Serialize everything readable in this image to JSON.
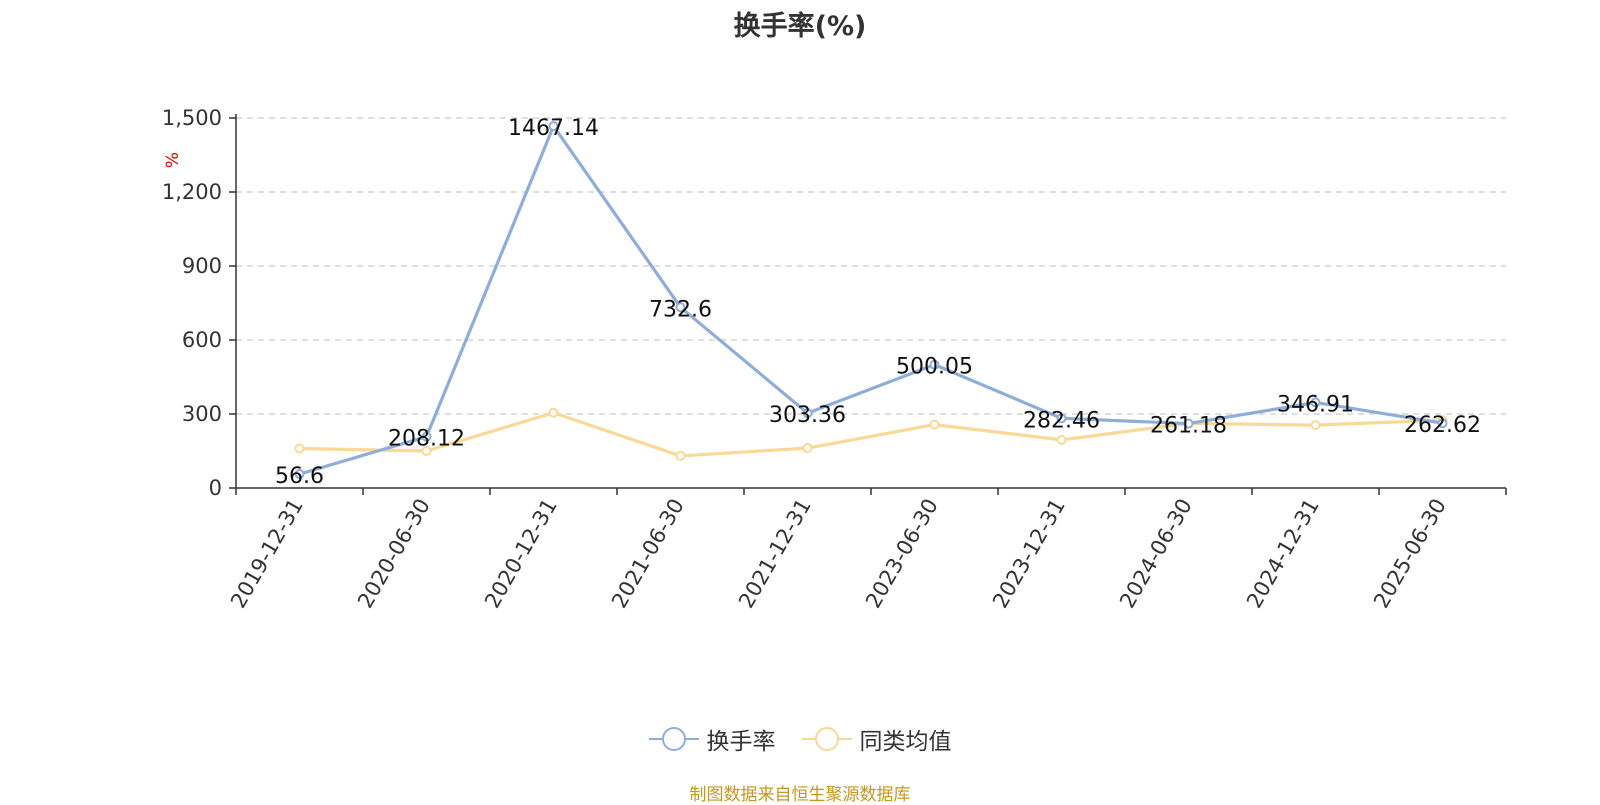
{
  "chart_data": {
    "type": "line",
    "title": "换手率(%)",
    "unit": "%",
    "categories": [
      "2019-12-31",
      "2020-06-30",
      "2020-12-31",
      "2021-06-30",
      "2021-12-31",
      "2023-06-30",
      "2023-12-31",
      "2024-06-30",
      "2024-12-31",
      "2025-06-30"
    ],
    "ylim": [
      0,
      1500
    ],
    "yticks": [
      0,
      300,
      600,
      900,
      1200,
      1500
    ],
    "ytick_labels": [
      "0",
      "300",
      "600",
      "900",
      "1,200",
      "1,500"
    ],
    "grid": true,
    "legend_position": "bottom",
    "series": [
      {
        "name": "换手率",
        "color": "#8eadd8",
        "values": [
          56.6,
          208.12,
          1467.14,
          732.6,
          303.36,
          500.05,
          282.46,
          261.18,
          346.91,
          262.62
        ],
        "labels": [
          "56.6",
          "208.12",
          "1467.14",
          "732.6",
          "303.36",
          "500.05",
          "282.46",
          "261.18",
          "346.91",
          "262.62"
        ]
      },
      {
        "name": "同类均值",
        "color": "#fad896",
        "values": [
          160,
          150,
          305,
          130,
          162,
          257,
          195,
          262,
          255,
          275
        ]
      }
    ],
    "source": "制图数据来自恒生聚源数据库"
  }
}
